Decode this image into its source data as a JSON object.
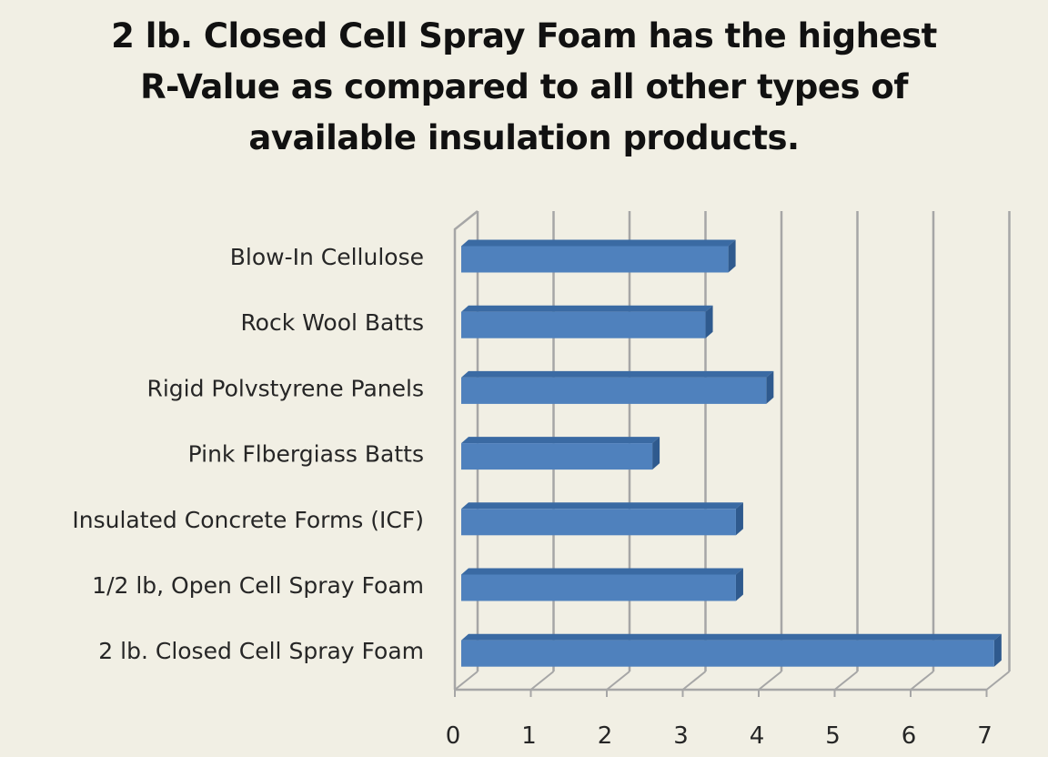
{
  "title": {
    "lines": [
      "2 lb. Closed Cell Spray Foam has the highest",
      "R-Value as compared to all other types of",
      "available insulation products."
    ]
  },
  "colors": {
    "background": "#f1efe4",
    "bar_front": "#4f81bd",
    "bar_top": "#3a6aa3",
    "bar_side": "#2f5a8e",
    "grid": "#a6a6a6",
    "text": "#262626"
  },
  "chart_data": {
    "type": "bar",
    "orientation": "horizontal",
    "style": "3d-clustered",
    "title": "2 lb. Closed Cell Spray Foam has the highest R-Value as compared to all other types of available insulation products.",
    "xlabel": "",
    "ylabel": "",
    "categories": [
      "Blow-In Cellulose",
      "Rock Wool Batts",
      "Rigid Polvstyrene Panels",
      "Pink Flbergiass Batts",
      "Insulated Concrete Forms (ICF)",
      "1/2 lb, Open Cell Spray Foam",
      "2 lb. Closed Cell Spray Foam"
    ],
    "values": [
      3.6,
      3.3,
      4.1,
      2.6,
      3.7,
      3.7,
      7.1
    ],
    "xlim": [
      0,
      7
    ],
    "xticks": [
      "0",
      "1",
      "2",
      "3",
      "4",
      "5",
      "6",
      "7"
    ],
    "grid": true,
    "legend": null
  }
}
